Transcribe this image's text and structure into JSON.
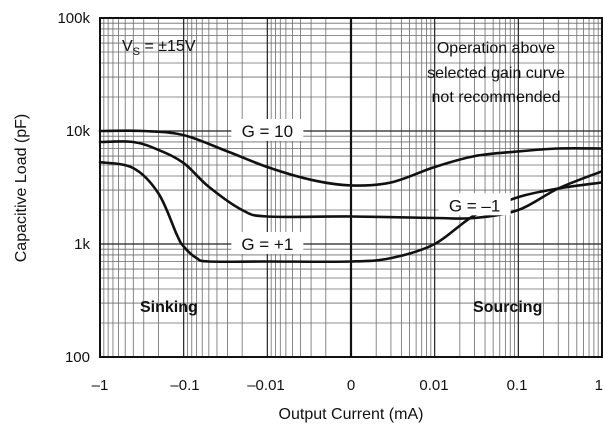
{
  "chart_data": {
    "type": "line",
    "title": "",
    "xlabel": "Output Current (mA)",
    "ylabel": "Capacitive Load (pF)",
    "x_scale": "symmetric-log",
    "y_scale": "log",
    "x_ticks": [
      "–1",
      "–0.1",
      "–0.01",
      "0",
      "0.01",
      "0.1",
      "1"
    ],
    "y_ticks": [
      "100",
      "1k",
      "10k",
      "100k"
    ],
    "ylim": [
      100,
      100000
    ],
    "grid": true,
    "annotations": {
      "supply": "V",
      "supply_sub": "S",
      "supply_value": " = ±15V",
      "note_lines": [
        "Operation above",
        "selected gain curve",
        "not recommended"
      ],
      "sinking": "Sinking",
      "sourcing": "Sourcing"
    },
    "series": [
      {
        "name": "G = 10",
        "x": [
          "–1",
          "–0.3",
          "–0.1",
          "–0.03",
          "–0.01",
          "–0.003",
          "0",
          "0.003",
          "0.01",
          "0.03",
          "0.1",
          "0.3",
          "1"
        ],
        "y": [
          10000,
          10000,
          9200,
          6600,
          4800,
          3700,
          3300,
          3500,
          4800,
          6000,
          6600,
          7000,
          7000
        ]
      },
      {
        "name": "G = –1",
        "x": [
          "–1",
          "–0.4",
          "–0.2",
          "–0.1",
          "–0.05",
          "–0.02",
          "–0.01",
          "0",
          "0.01",
          "0.03",
          "0.1",
          "0.3",
          "1"
        ],
        "y": [
          8000,
          8000,
          6800,
          5200,
          3200,
          2000,
          1750,
          1750,
          1700,
          1700,
          2000,
          3100,
          4400
        ]
      },
      {
        "name": "G = +1",
        "x": [
          "–1",
          "–0.4",
          "–0.2",
          "–0.12",
          "–0.1",
          "–0.07",
          "–0.05",
          "–0.01",
          "0",
          "0.003",
          "0.01",
          "0.03",
          "0.1",
          "0.3",
          "1"
        ],
        "y": [
          5300,
          4700,
          2800,
          1200,
          950,
          750,
          700,
          700,
          700,
          750,
          1000,
          1800,
          2600,
          3100,
          3500
        ]
      }
    ]
  }
}
